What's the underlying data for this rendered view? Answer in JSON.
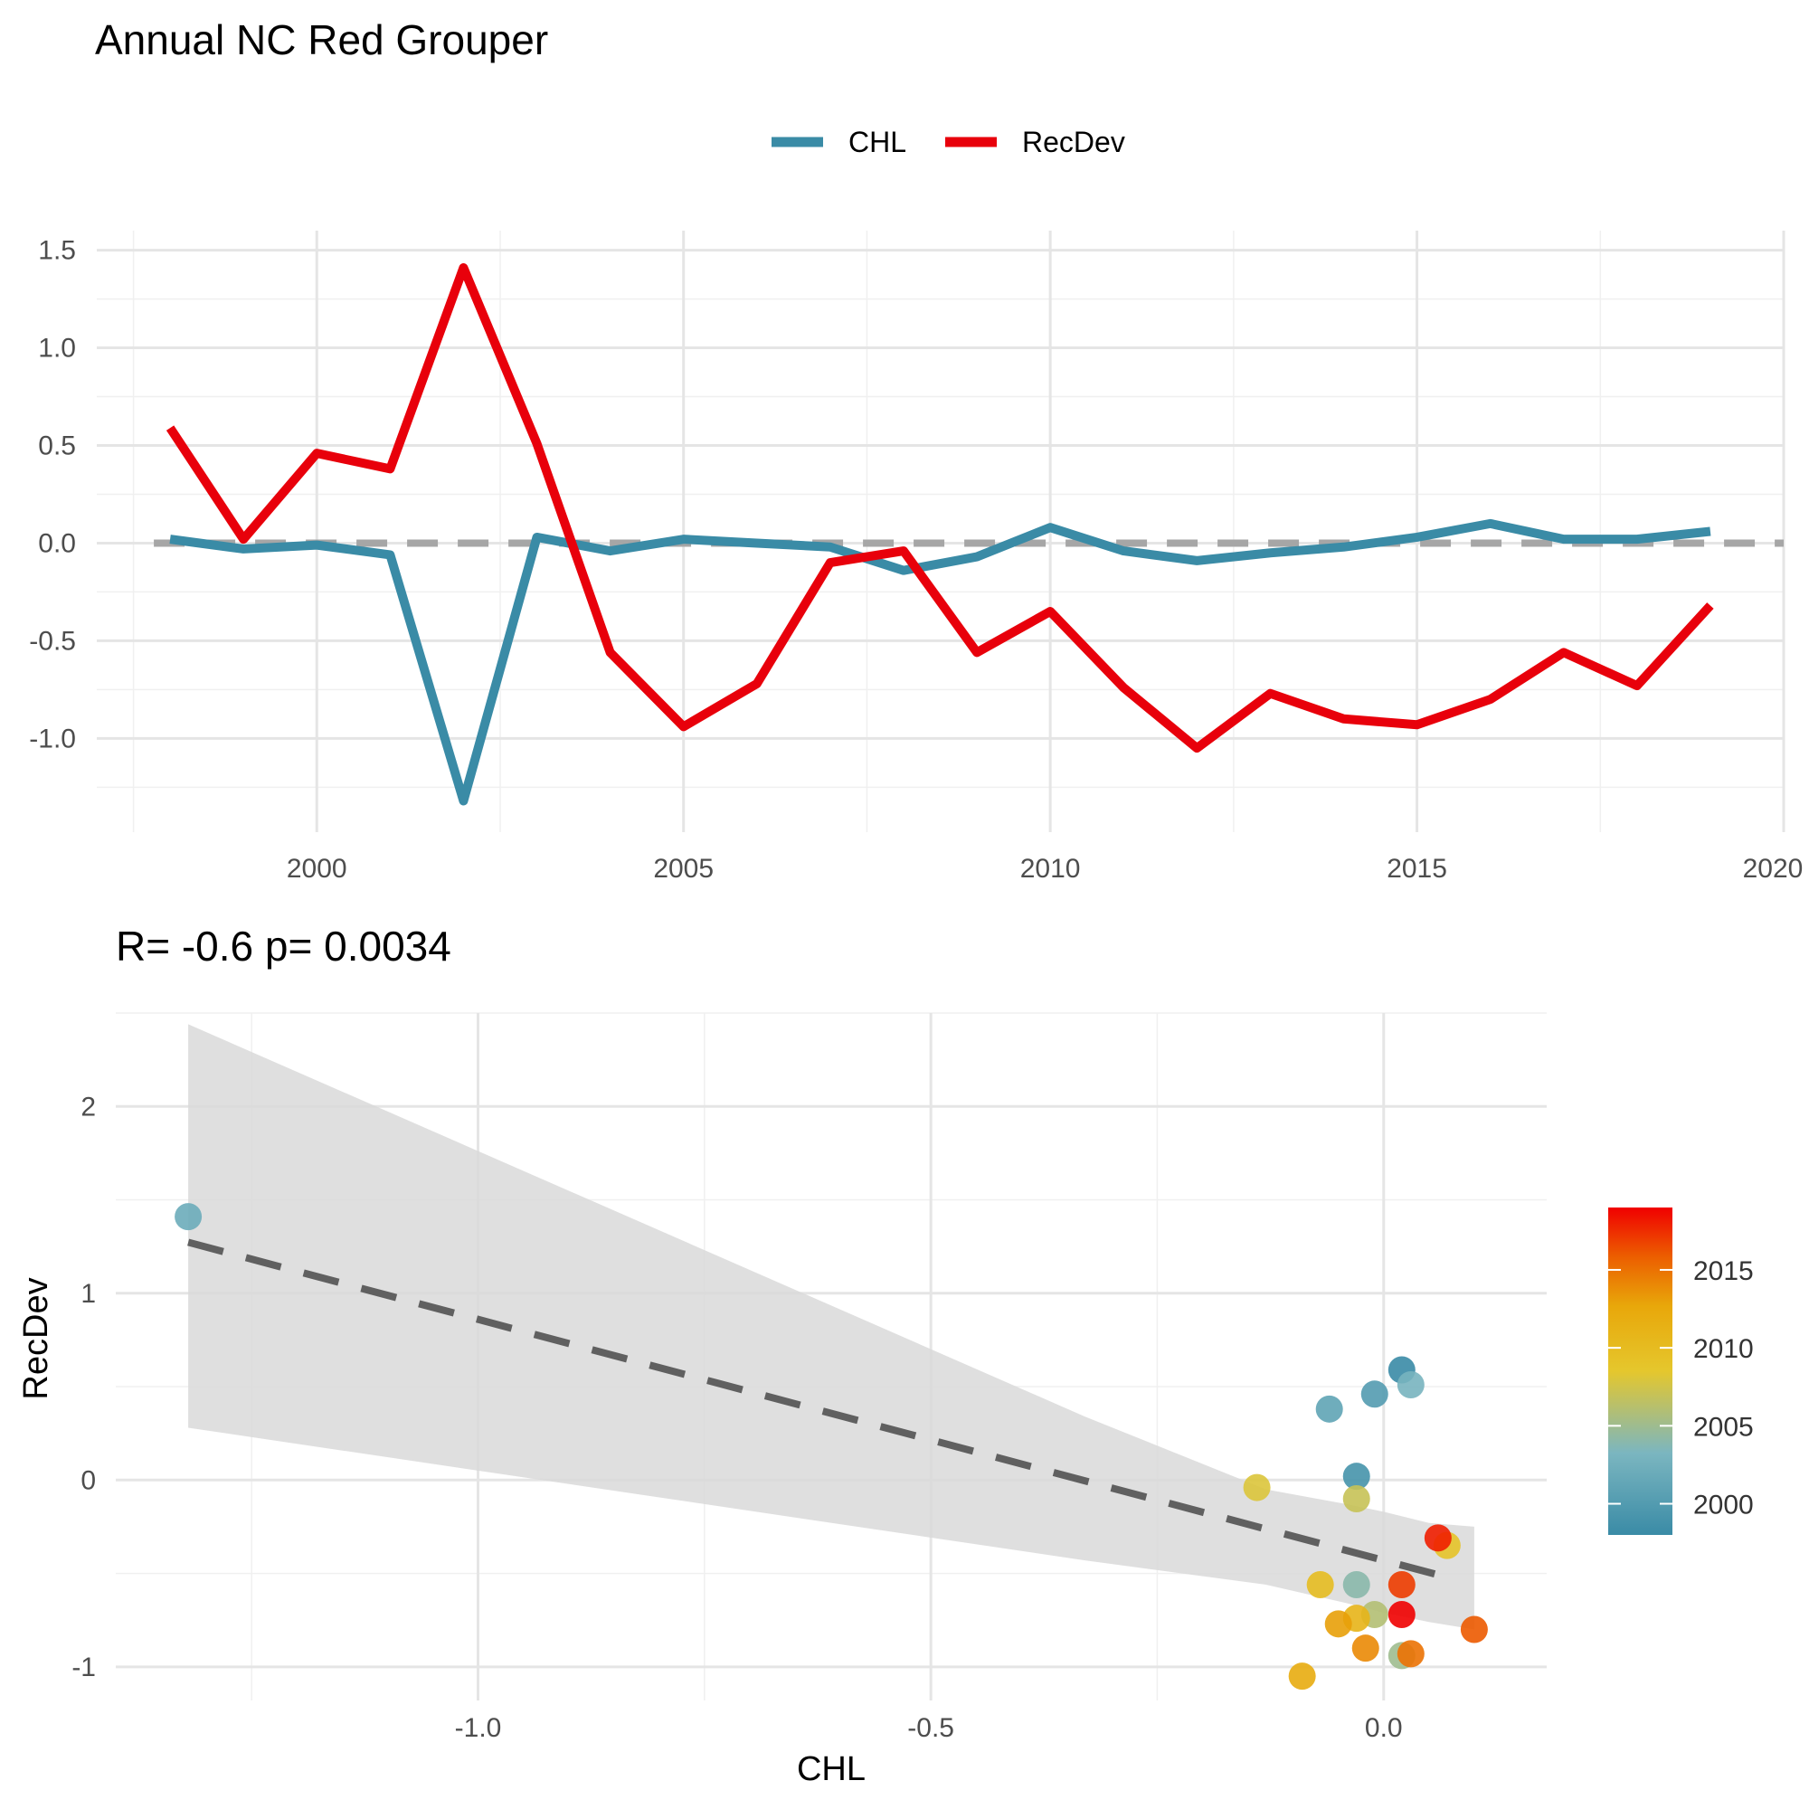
{
  "title": "Annual NC Red Grouper",
  "colors": {
    "chl": "#3a8ba6",
    "recdev": "#e8000b",
    "zero_line": "#a6a6a6",
    "fit_line": "#606060",
    "ribbon": "#d9d9d9"
  },
  "chart_data": [
    {
      "type": "line",
      "legend": {
        "position": "top",
        "entries": [
          "CHL",
          "RecDev"
        ]
      },
      "x": [
        1998,
        1999,
        2000,
        2001,
        2002,
        2003,
        2004,
        2005,
        2006,
        2007,
        2008,
        2009,
        2010,
        2011,
        2012,
        2013,
        2014,
        2015,
        2016,
        2017,
        2018,
        2019
      ],
      "series": [
        {
          "name": "CHL",
          "values": [
            0.02,
            -0.03,
            -0.01,
            -0.06,
            -1.32,
            0.03,
            -0.04,
            0.02,
            0.0,
            -0.02,
            -0.14,
            -0.07,
            0.08,
            -0.04,
            -0.09,
            -0.05,
            -0.02,
            0.03,
            0.1,
            0.02,
            0.02,
            0.06
          ]
        },
        {
          "name": "RecDev",
          "values": [
            0.59,
            0.02,
            0.46,
            0.38,
            1.41,
            0.51,
            -0.56,
            -0.94,
            -0.72,
            -0.1,
            -0.04,
            -0.56,
            -0.35,
            -0.74,
            -1.05,
            -0.77,
            -0.9,
            -0.93,
            -0.8,
            -0.56,
            -0.73,
            -0.32
          ]
        }
      ],
      "reference_line": 0,
      "xlim": [
        1997,
        2020
      ],
      "ylim": [
        -1.48,
        1.6
      ],
      "x_ticks": [
        2000,
        2005,
        2010,
        2015,
        2020
      ],
      "x_tick_labels": [
        "2000",
        "2005",
        "2010",
        "2015",
        "2020"
      ],
      "y_ticks": [
        -1.0,
        -0.5,
        0.0,
        0.5,
        1.0,
        1.5
      ],
      "y_tick_labels": [
        "-1.0",
        "-0.5",
        "0.0",
        "0.5",
        "1.0",
        "1.5"
      ],
      "grid": true
    },
    {
      "type": "scatter",
      "subtitle": "R= -0.6  p= 0.0034",
      "xlabel": "CHL",
      "ylabel": "RecDev",
      "xlim": [
        -1.4,
        0.18
      ],
      "ylim": [
        -1.18,
        2.5
      ],
      "x_ticks": [
        -1.0,
        -0.5,
        0.0
      ],
      "x_tick_labels": [
        "-1.0",
        "-0.5",
        "0.0"
      ],
      "y_ticks": [
        -1,
        0,
        1,
        2
      ],
      "y_tick_labels": [
        "-1",
        "0",
        "1",
        "2"
      ],
      "grid": true,
      "fit": {
        "slope": -1.29,
        "intercept": -0.43,
        "x_range": [
          -1.32,
          0.08
        ]
      },
      "ribbon": {
        "x": [
          -1.32,
          -0.33,
          -0.13,
          -0.04,
          0.0,
          0.05,
          0.1
        ],
        "upper": [
          2.44,
          0.34,
          -0.05,
          -0.13,
          -0.17,
          -0.23,
          -0.25
        ],
        "lower": [
          0.28,
          -0.43,
          -0.56,
          -0.66,
          -0.71,
          -0.76,
          -0.8
        ]
      },
      "points": [
        {
          "year": 1998,
          "x": 0.02,
          "y": 0.59
        },
        {
          "year": 1999,
          "x": -0.03,
          "y": 0.02
        },
        {
          "year": 2000,
          "x": -0.01,
          "y": 0.46
        },
        {
          "year": 2001,
          "x": -0.06,
          "y": 0.38
        },
        {
          "year": 2002,
          "x": -1.32,
          "y": 1.41
        },
        {
          "year": 2003,
          "x": 0.03,
          "y": 0.51
        },
        {
          "year": 2004,
          "x": -0.03,
          "y": -0.56
        },
        {
          "year": 2005,
          "x": 0.02,
          "y": -0.94
        },
        {
          "year": 2006,
          "x": -0.01,
          "y": -0.72
        },
        {
          "year": 2007,
          "x": -0.03,
          "y": -0.1
        },
        {
          "year": 2008,
          "x": -0.14,
          "y": -0.04
        },
        {
          "year": 2009,
          "x": 0.07,
          "y": -0.35
        },
        {
          "year": 2010,
          "x": -0.07,
          "y": -0.56
        },
        {
          "year": 2011,
          "x": -0.03,
          "y": -0.74
        },
        {
          "year": 2012,
          "x": -0.09,
          "y": -1.05
        },
        {
          "year": 2013,
          "x": -0.05,
          "y": -0.77
        },
        {
          "year": 2014,
          "x": -0.02,
          "y": -0.9
        },
        {
          "year": 2015,
          "x": 0.03,
          "y": -0.93
        },
        {
          "year": 2016,
          "x": 0.1,
          "y": -0.8
        },
        {
          "year": 2017,
          "x": 0.02,
          "y": -0.56
        },
        {
          "year": 2018,
          "x": 0.06,
          "y": -0.31
        },
        {
          "year": 2019,
          "x": 0.02,
          "y": -0.72
        }
      ],
      "colorbar": {
        "range": [
          1998,
          2019
        ],
        "ticks": [
          2000,
          2005,
          2010,
          2015
        ],
        "tick_labels": [
          "2000",
          "2005",
          "2010",
          "2015"
        ],
        "stops": [
          "#3a8ba6",
          "#7bb6c0",
          "#e5c72d",
          "#e8a70a",
          "#ec5e00",
          "#f00000"
        ]
      }
    }
  ]
}
